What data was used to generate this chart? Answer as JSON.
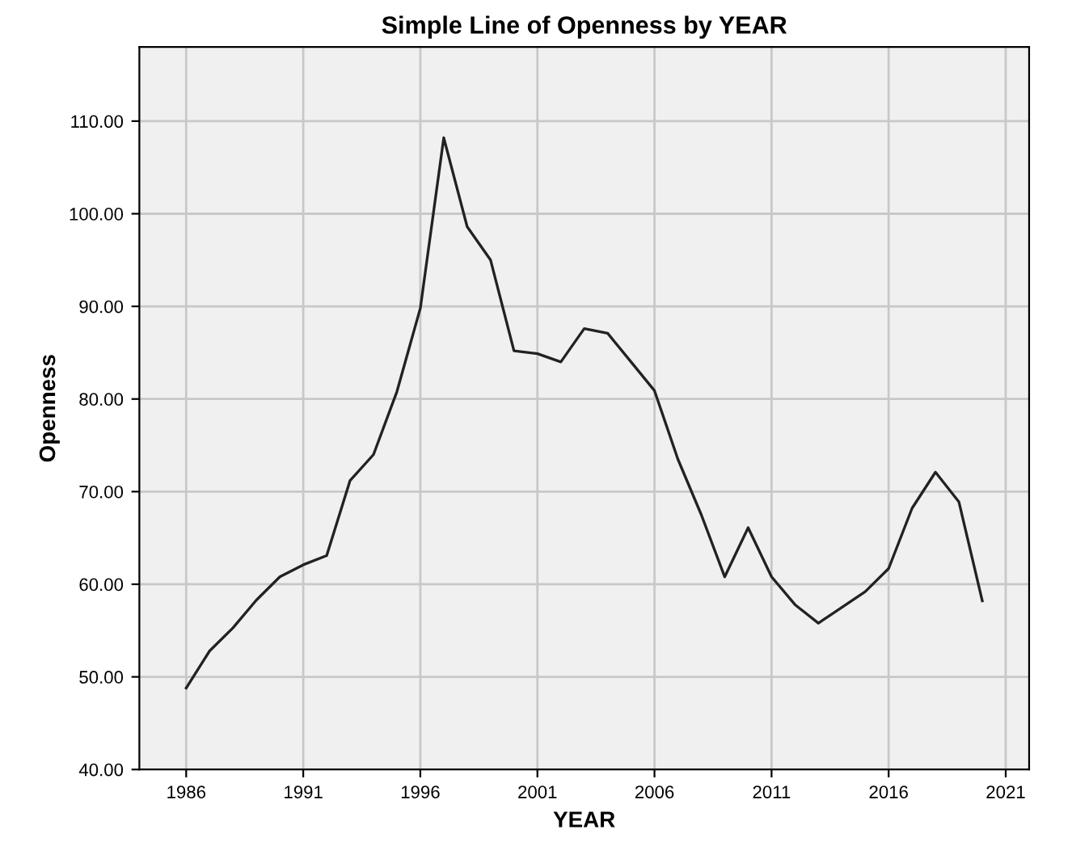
{
  "chart_data": {
    "type": "line",
    "title": "Simple Line of Openness by YEAR",
    "xlabel": "YEAR",
    "ylabel": "Openness",
    "x": [
      1986,
      1987,
      1988,
      1989,
      1990,
      1991,
      1992,
      1993,
      1994,
      1995,
      1996,
      1997,
      1998,
      1999,
      2000,
      2001,
      2002,
      2003,
      2004,
      2005,
      2006,
      2007,
      2008,
      2009,
      2010,
      2011,
      2012,
      2013,
      2014,
      2015,
      2016,
      2017,
      2018,
      2019,
      2020
    ],
    "series": [
      {
        "color": "#222222",
        "values": [
          48.8,
          52.8,
          55.3,
          58.3,
          60.8,
          62.1,
          63.1,
          71.2,
          74.0,
          80.8,
          89.8,
          108.2,
          98.6,
          95.0,
          85.2,
          84.9,
          84.0,
          87.6,
          87.1,
          84.0,
          80.9,
          73.5,
          67.5,
          60.8,
          66.1,
          60.8,
          57.8,
          55.8,
          57.5,
          59.2,
          61.7,
          68.2,
          72.1,
          68.9,
          58.2
        ]
      }
    ],
    "xlim": [
      1984,
      2022
    ],
    "xticks": [
      1986,
      1991,
      1996,
      2001,
      2006,
      2011,
      2016,
      2021
    ],
    "ylim": [
      40,
      118
    ],
    "yticks": [
      {
        "value": 40,
        "label": "40.00"
      },
      {
        "value": 50,
        "label": "50.00"
      },
      {
        "value": 60,
        "label": "60.00"
      },
      {
        "value": 70,
        "label": "70.00"
      },
      {
        "value": 80,
        "label": "80.00"
      },
      {
        "value": 90,
        "label": "90.00"
      },
      {
        "value": 100,
        "label": "100.00"
      },
      {
        "value": 110,
        "label": "110.00"
      }
    ],
    "grid": true,
    "marker": "none",
    "line_style": "solid"
  }
}
